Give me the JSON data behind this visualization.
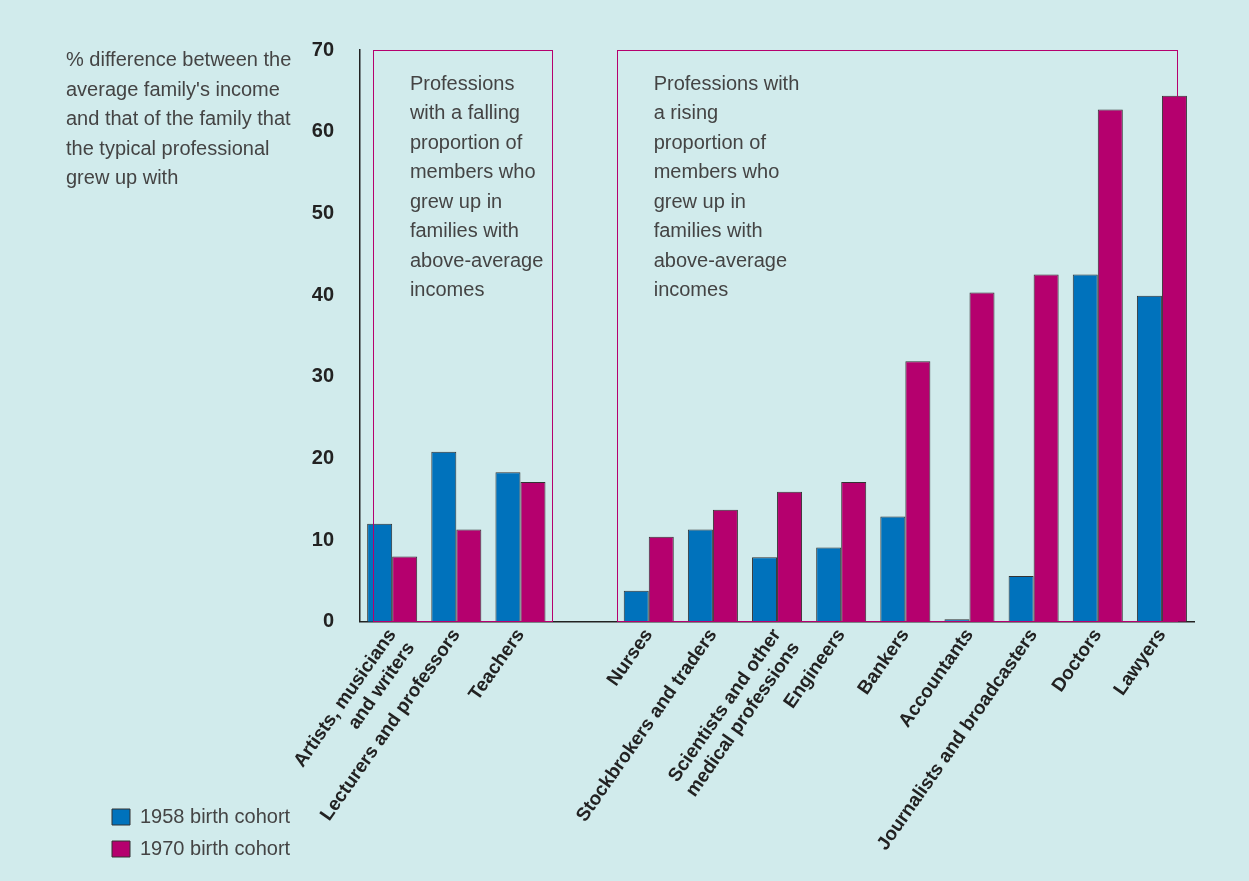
{
  "chart_data": {
    "type": "bar",
    "ylabel": "% difference between the average family's income and that of the family that the typical professional grew up with",
    "categories": [
      "Artists, musicians\nand writers",
      "Lecturers and professors",
      "Teachers",
      null,
      "Nurses",
      "Stockbrokers and traders",
      "Scientists and other\nmedical professions",
      "Engineers",
      "Bankers",
      "Accountants",
      "Journalists and broadcasters",
      "Doctors",
      "Lawyers"
    ],
    "series": [
      {
        "name": "1958 birth cohort",
        "color": "#0072bc",
        "values": [
          12.0,
          20.8,
          18.3,
          null,
          3.8,
          11.3,
          7.9,
          9.1,
          12.9,
          0.3,
          5.6,
          42.5,
          39.9
        ]
      },
      {
        "name": "1970 birth cohort",
        "color": "#b5006e",
        "values": [
          8.0,
          11.3,
          17.1,
          null,
          10.4,
          13.7,
          15.9,
          17.1,
          31.9,
          40.3,
          42.5,
          62.7,
          64.4
        ]
      }
    ],
    "ylim": [
      0,
      70
    ],
    "yticks": [
      0,
      10,
      20,
      30,
      40,
      50,
      60,
      70
    ],
    "grid": false,
    "legend": "bottom left",
    "annotations": [
      "Professions with a falling proportion of members who grew up in families with above-average incomes",
      "Professions with a rising proportion of members who grew up in families with above-average incomes"
    ]
  }
}
